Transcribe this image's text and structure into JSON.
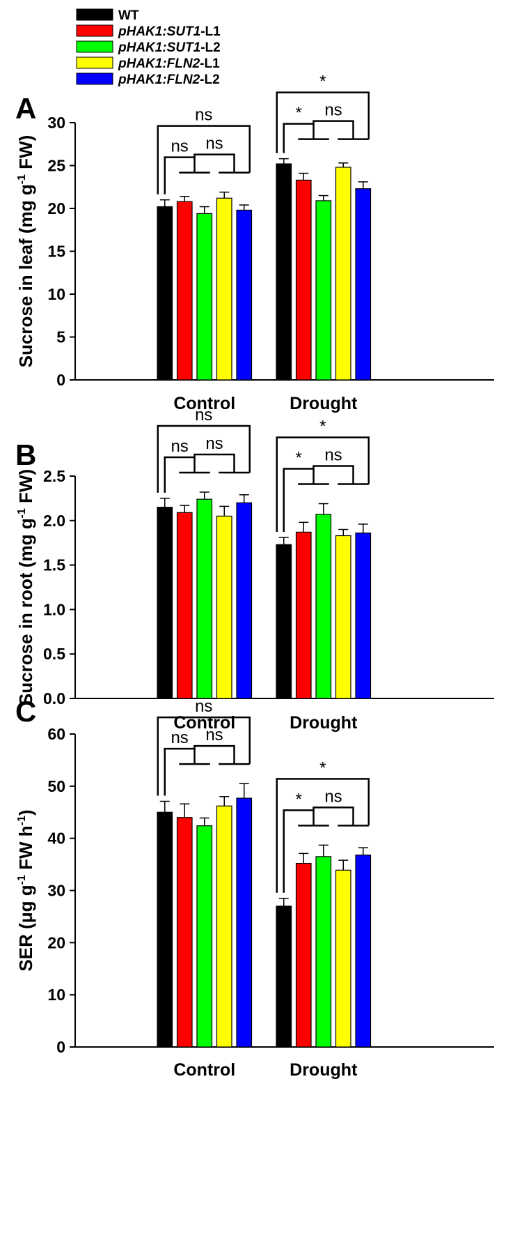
{
  "legend": [
    {
      "label_i": "",
      "label": "WT",
      "color": "#000000"
    },
    {
      "label_i": "pHAK1:SUT1",
      "label": "-L1",
      "color": "#ff0000"
    },
    {
      "label_i": "pHAK1:SUT1",
      "label": "-L2",
      "color": "#00ff00"
    },
    {
      "label_i": "pHAK1:FLN2",
      "label": "-L1",
      "color": "#ffff00"
    },
    {
      "label_i": "pHAK1:FLN2",
      "label": "-L2",
      "color": "#0000ff"
    }
  ],
  "chart_data": [
    {
      "type": "bar",
      "panel": "A",
      "ylabel_pre": "Sucrose in leaf (mg g",
      "ylabel_sup": "-1",
      "ylabel_post": " FW)",
      "ylim": [
        0,
        30
      ],
      "yticks": [
        "0",
        "5",
        "10",
        "15",
        "20",
        "25",
        "30"
      ],
      "categories": [
        "Control",
        "Drought"
      ],
      "values": [
        [
          20.2,
          20.8,
          19.4,
          21.2,
          19.8
        ],
        [
          25.2,
          23.3,
          20.9,
          24.8,
          22.3
        ]
      ],
      "errors": [
        [
          0.8,
          0.6,
          0.8,
          0.7,
          0.6
        ],
        [
          0.6,
          0.8,
          0.6,
          0.5,
          0.8
        ]
      ],
      "significance": [
        {
          "label": "ns"
        },
        {
          "label": "ns"
        },
        {
          "label": "ns"
        },
        {
          "label": "*"
        },
        {
          "label": "*"
        },
        {
          "label": "ns"
        }
      ]
    },
    {
      "type": "bar",
      "panel": "B",
      "ylabel_pre": "Sucrose in root (mg g",
      "ylabel_sup": "-1",
      "ylabel_post": " FW)",
      "ylim": [
        0,
        2.5
      ],
      "yticks": [
        "0.0",
        "0.5",
        "1.0",
        "1.5",
        "2.0",
        "2.5"
      ],
      "categories": [
        "Control",
        "Drought"
      ],
      "values": [
        [
          2.15,
          2.09,
          2.24,
          2.05,
          2.2
        ],
        [
          1.73,
          1.87,
          2.07,
          1.83,
          1.86
        ]
      ],
      "errors": [
        [
          0.1,
          0.08,
          0.08,
          0.11,
          0.09
        ],
        [
          0.08,
          0.11,
          0.12,
          0.07,
          0.1
        ]
      ],
      "significance": [
        {
          "label": "ns"
        },
        {
          "label": "ns"
        },
        {
          "label": "ns"
        },
        {
          "label": "*"
        },
        {
          "label": "*"
        },
        {
          "label": "ns"
        }
      ]
    },
    {
      "type": "bar",
      "panel": "C",
      "ylabel_pre": "SER (μg g",
      "ylabel_sup": "-1",
      "ylabel_post": " FW h",
      "ylabel_sup2": "-1",
      "ylabel_end": ")",
      "ylim": [
        0,
        60
      ],
      "yticks": [
        "0",
        "10",
        "20",
        "30",
        "40",
        "50",
        "60"
      ],
      "categories": [
        "Control",
        "Drought"
      ],
      "values": [
        [
          45.0,
          44.0,
          42.4,
          46.2,
          47.7
        ],
        [
          27.0,
          35.2,
          36.5,
          33.9,
          36.8
        ]
      ],
      "errors": [
        [
          2.1,
          2.6,
          1.5,
          1.8,
          2.8
        ],
        [
          1.5,
          1.9,
          2.2,
          1.9,
          1.4
        ]
      ],
      "significance": [
        {
          "label": "ns"
        },
        {
          "label": "ns"
        },
        {
          "label": "ns"
        },
        {
          "label": "*"
        },
        {
          "label": "*"
        },
        {
          "label": "ns"
        }
      ]
    }
  ]
}
